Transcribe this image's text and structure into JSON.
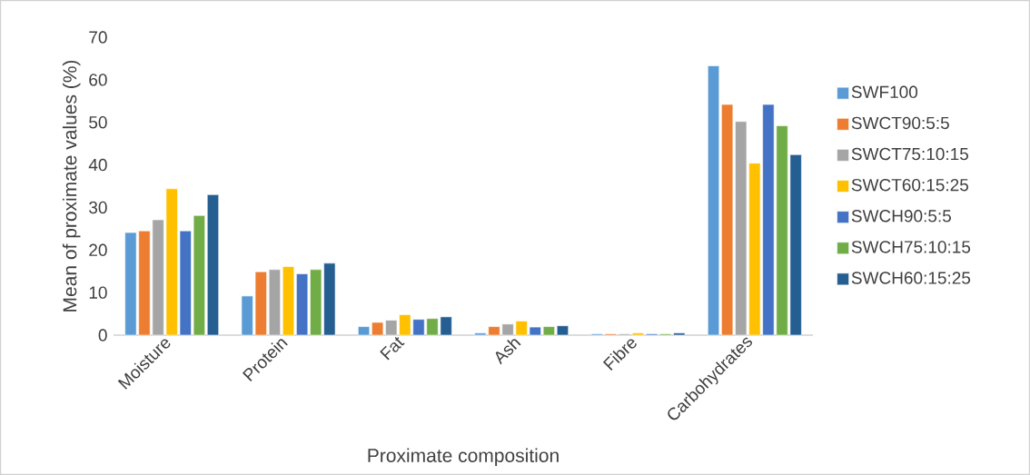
{
  "chart_data": {
    "type": "bar",
    "xlabel": "Proximate composition",
    "ylabel": "Mean of proximate values (%)",
    "categories": [
      "Moisture",
      "Protein",
      "Fat",
      "Ash",
      "Fibre",
      "Carbohydrates"
    ],
    "ylim": [
      0,
      70
    ],
    "grid": false,
    "yticks": [
      0,
      10,
      20,
      30,
      40,
      50,
      60,
      70
    ],
    "legend": "right",
    "series": [
      {
        "name": "SWF100",
        "color": "#5b9bd5",
        "values": [
          24.1,
          9.2,
          2.0,
          0.5,
          0.3,
          63.3
        ]
      },
      {
        "name": "SWCT90:5:5",
        "color": "#ed7d31",
        "values": [
          24.5,
          14.9,
          3.0,
          2.0,
          0.3,
          54.2
        ]
      },
      {
        "name": "SWCT75:10:15",
        "color": "#a5a5a5",
        "values": [
          27.1,
          15.4,
          3.5,
          2.6,
          0.3,
          50.2
        ]
      },
      {
        "name": "SWCT60:15:25",
        "color": "#ffc000",
        "values": [
          34.4,
          16.1,
          4.8,
          3.3,
          0.5,
          40.4
        ]
      },
      {
        "name": "SWCH90:5:5",
        "color": "#4472c4",
        "values": [
          24.5,
          14.4,
          3.7,
          1.9,
          0.3,
          54.2
        ]
      },
      {
        "name": "SWCH75:10:15",
        "color": "#70ad47",
        "values": [
          28.1,
          15.4,
          3.9,
          2.0,
          0.3,
          49.2
        ]
      },
      {
        "name": "SWCH60:15:25",
        "color": "#255e91",
        "values": [
          33.0,
          16.9,
          4.3,
          2.2,
          0.5,
          42.4
        ]
      }
    ]
  }
}
